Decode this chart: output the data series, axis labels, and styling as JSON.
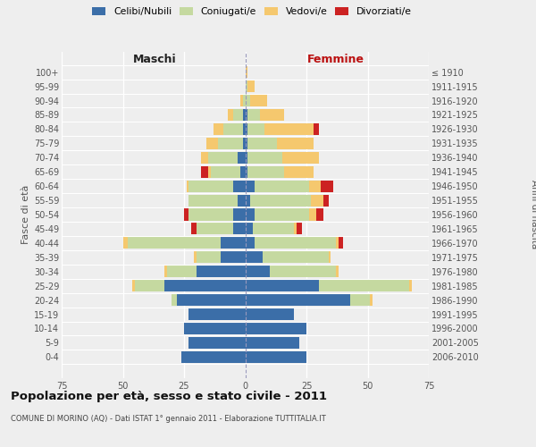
{
  "age_groups": [
    "0-4",
    "5-9",
    "10-14",
    "15-19",
    "20-24",
    "25-29",
    "30-34",
    "35-39",
    "40-44",
    "45-49",
    "50-54",
    "55-59",
    "60-64",
    "65-69",
    "70-74",
    "75-79",
    "80-84",
    "85-89",
    "90-94",
    "95-99",
    "100+"
  ],
  "birth_years": [
    "2006-2010",
    "2001-2005",
    "1996-2000",
    "1991-1995",
    "1986-1990",
    "1981-1985",
    "1976-1980",
    "1971-1975",
    "1966-1970",
    "1961-1965",
    "1956-1960",
    "1951-1955",
    "1946-1950",
    "1941-1945",
    "1936-1940",
    "1931-1935",
    "1926-1930",
    "1921-1925",
    "1916-1920",
    "1911-1915",
    "≤ 1910"
  ],
  "maschi_celibe": [
    26,
    23,
    25,
    23,
    28,
    33,
    20,
    10,
    10,
    5,
    5,
    3,
    5,
    2,
    3,
    1,
    1,
    1,
    0,
    0,
    0
  ],
  "maschi_coniugato": [
    0,
    0,
    0,
    0,
    2,
    12,
    12,
    10,
    38,
    15,
    18,
    20,
    18,
    12,
    12,
    10,
    8,
    4,
    1,
    0,
    0
  ],
  "maschi_vedovo": [
    0,
    0,
    0,
    0,
    0,
    1,
    1,
    1,
    2,
    0,
    0,
    0,
    1,
    1,
    3,
    5,
    4,
    2,
    1,
    0,
    0
  ],
  "maschi_divorziato": [
    0,
    0,
    0,
    0,
    0,
    0,
    0,
    0,
    0,
    2,
    2,
    0,
    0,
    3,
    0,
    0,
    0,
    0,
    0,
    0,
    0
  ],
  "femmine_celibe": [
    25,
    22,
    25,
    20,
    43,
    30,
    10,
    7,
    4,
    3,
    4,
    2,
    4,
    1,
    1,
    1,
    1,
    1,
    0,
    0,
    0
  ],
  "femmine_coniugato": [
    0,
    0,
    0,
    0,
    8,
    37,
    27,
    27,
    33,
    17,
    22,
    25,
    22,
    15,
    14,
    12,
    7,
    5,
    2,
    1,
    0
  ],
  "femmine_vedovo": [
    0,
    0,
    0,
    0,
    1,
    1,
    1,
    1,
    1,
    1,
    3,
    5,
    5,
    12,
    15,
    15,
    20,
    10,
    7,
    3,
    1
  ],
  "femmine_divorziato": [
    0,
    0,
    0,
    0,
    0,
    0,
    0,
    0,
    2,
    2,
    3,
    2,
    5,
    0,
    0,
    0,
    2,
    0,
    0,
    0,
    0
  ],
  "color_celibe": "#3b6ea8",
  "color_coniugato": "#c5d9a0",
  "color_vedovo": "#f5c86e",
  "color_divorziato": "#cc2222",
  "title": "Popolazione per età, sesso e stato civile - 2011",
  "subtitle": "COMUNE DI MORINO (AQ) - Dati ISTAT 1° gennaio 2011 - Elaborazione TUTTITALIA.IT",
  "label_maschi": "Maschi",
  "label_femmine": "Femmine",
  "ylabel_left": "Fasce di età",
  "ylabel_right": "Anni di nascita",
  "xlim": 75,
  "bg_color": "#eeeeee",
  "legend_labels": [
    "Celibi/Nubili",
    "Coniugati/e",
    "Vedovi/e",
    "Divorziati/e"
  ]
}
